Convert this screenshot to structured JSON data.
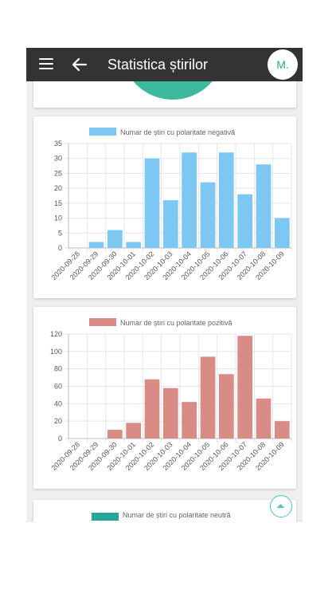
{
  "app_bar": {
    "title": "Statistica știrilor",
    "avatar_initials": "M."
  },
  "charts": {
    "negative": {
      "type": "bar",
      "legend": "Numar de știri cu polaritate negativă",
      "color": "#7cc8f3",
      "categories": [
        "2020-09-28",
        "2020-09-29",
        "2020-09-30",
        "2020-10-01",
        "2020-10-02",
        "2020-10-03",
        "2020-10-04",
        "2020-10-05",
        "2020-10-06",
        "2020-10-07",
        "2020-10-08",
        "2020-10-09"
      ],
      "values": [
        0,
        2,
        6,
        2,
        30,
        16,
        32,
        22,
        32,
        18,
        28,
        10
      ],
      "ylim": [
        0,
        35
      ],
      "yticks": [
        0,
        5,
        10,
        15,
        20,
        25,
        30,
        35
      ]
    },
    "positive": {
      "type": "bar",
      "legend": "Numar de știri cu polaritate pozitivă",
      "color": "#d98c86",
      "categories": [
        "2020-09-28",
        "2020-09-29",
        "2020-09-30",
        "2020-10-01",
        "2020-10-02",
        "2020-10-03",
        "2020-10-04",
        "2020-10-05",
        "2020-10-06",
        "2020-10-07",
        "2020-10-08",
        "2020-10-09"
      ],
      "values": [
        0,
        0,
        10,
        18,
        68,
        58,
        42,
        94,
        74,
        118,
        46,
        20
      ],
      "ylim": [
        0,
        120
      ],
      "yticks": [
        0,
        20,
        40,
        60,
        80,
        100,
        120
      ]
    },
    "neutral": {
      "legend": "Numar de știri cu polaritate neutră",
      "color": "#26a69a"
    }
  },
  "chart_data": [
    {
      "type": "bar",
      "categories": [
        "2020-09-28",
        "2020-09-29",
        "2020-09-30",
        "2020-10-01",
        "2020-10-02",
        "2020-10-03",
        "2020-10-04",
        "2020-10-05",
        "2020-10-06",
        "2020-10-07",
        "2020-10-08",
        "2020-10-09"
      ],
      "series": [
        {
          "name": "Numar de știri cu polaritate negativă",
          "values": [
            0,
            2,
            6,
            2,
            30,
            16,
            32,
            22,
            32,
            18,
            28,
            10
          ]
        }
      ],
      "ylim": [
        0,
        35
      ],
      "grid": true,
      "legend_position": "top"
    },
    {
      "type": "bar",
      "categories": [
        "2020-09-28",
        "2020-09-29",
        "2020-09-30",
        "2020-10-01",
        "2020-10-02",
        "2020-10-03",
        "2020-10-04",
        "2020-10-05",
        "2020-10-06",
        "2020-10-07",
        "2020-10-08",
        "2020-10-09"
      ],
      "series": [
        {
          "name": "Numar de știri cu polaritate pozitivă",
          "values": [
            0,
            0,
            10,
            18,
            68,
            58,
            42,
            94,
            74,
            118,
            46,
            20
          ]
        }
      ],
      "ylim": [
        0,
        120
      ],
      "grid": true,
      "legend_position": "top"
    }
  ],
  "icons": {
    "menu": "menu-icon",
    "back": "arrow-left-icon",
    "scroll_top": "chevron-up-icon"
  },
  "colors": {
    "app_bar": "#333333",
    "accent": "#26a69a"
  }
}
